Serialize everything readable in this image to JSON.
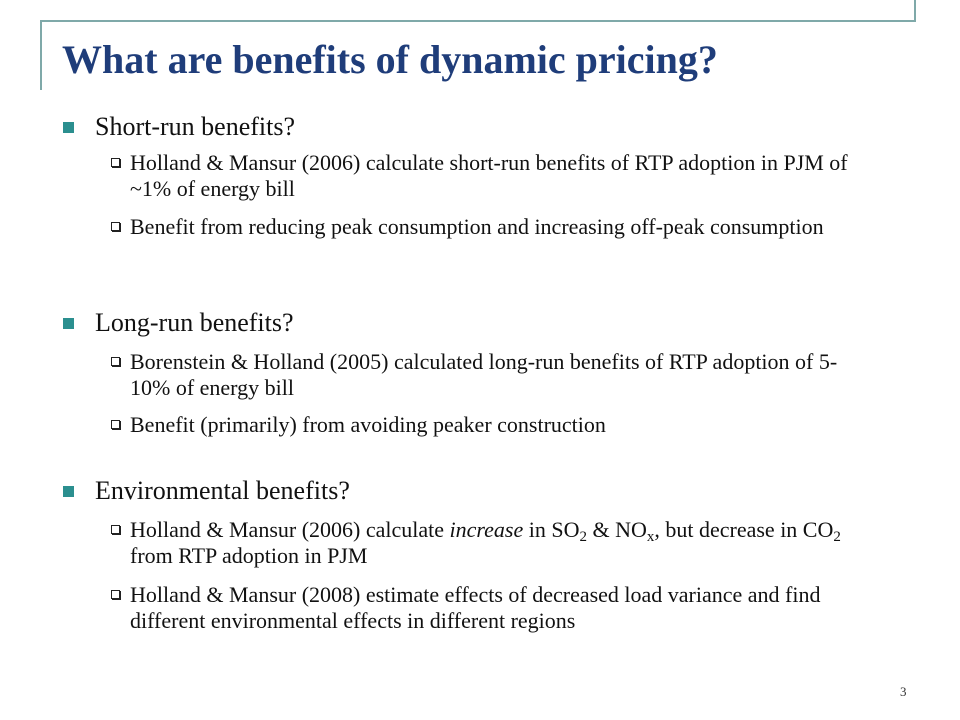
{
  "slide": {
    "title": "What are benefits of dynamic pricing?",
    "page_number": "3",
    "sections": [
      {
        "heading": "Short-run benefits?",
        "items": [
          [
            "Holland & Mansur (2006) calculate short-run benefits of RTP adoption in PJM of ~1% of energy bill"
          ],
          [
            "Benefit from reducing peak consumption and increasing off-peak consumption"
          ]
        ]
      },
      {
        "heading": "Long-run benefits?",
        "items": [
          [
            "Borenstein & Holland (2005) calculated long-run benefits of RTP adoption of 5-10% of energy bill"
          ],
          [
            "Benefit (primarily) from avoiding peaker construction"
          ]
        ]
      },
      {
        "heading": "Environmental benefits?",
        "items": [
          [
            "Holland & Mansur (2006) calculate ",
            "increase",
            " in SO",
            "2",
            " & NO",
            "x",
            ", but decrease in CO",
            "2",
            " from RTP adoption in PJM"
          ],
          [
            "Holland & Mansur (2008) estimate effects of decreased load variance and find different environmental effects in different regions"
          ]
        ]
      }
    ]
  }
}
